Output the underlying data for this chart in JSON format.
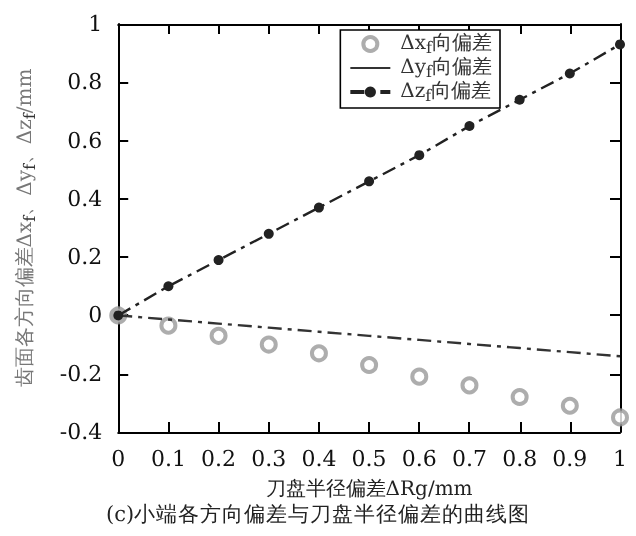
{
  "chart_data": {
    "type": "line",
    "xlabel": "刀盘半径偏差ΔRg/mm",
    "ylabel": "齿面各方向偏差Δx$_{f}$、Δy$_{f}$、Δz$_{f}$/mm",
    "annotations": [
      "(c)小端各方向偏差与刀盘半径偏差的曲线图"
    ],
    "x": [
      0,
      0.1,
      0.2,
      0.3,
      0.4,
      0.5,
      0.6,
      0.7,
      0.8,
      0.9,
      1
    ],
    "series": [
      {
        "name": "Δx$_{f}$向偏差",
        "type": "scatter",
        "marker": "circle",
        "color": "#999999",
        "values": [
          0,
          -0.035,
          -0.07,
          -0.1,
          -0.13,
          -0.17,
          -0.21,
          -0.24,
          -0.28,
          -0.31,
          -0.35
        ]
      },
      {
        "name": "Δy$_{f}$向偏差",
        "marker": "none",
        "line_style": "dashed",
        "color": "#333333",
        "values": [
          0,
          -0.014,
          -0.028,
          -0.042,
          -0.056,
          -0.07,
          -0.084,
          -0.098,
          -0.112,
          -0.126,
          -0.14
        ]
      },
      {
        "name": "Δz$_{f}$向偏差",
        "marker": "circle",
        "line_style": "dashed",
        "color": "#222222",
        "values": [
          0,
          0.1,
          0.19,
          0.28,
          0.37,
          0.46,
          0.55,
          0.65,
          0.74,
          0.83,
          0.93
        ]
      }
    ],
    "xlim": [
      0,
      1
    ],
    "xticks": [
      0,
      0.1,
      0.2,
      0.3,
      0.4,
      0.5,
      0.6,
      0.7,
      0.8,
      0.9,
      1
    ],
    "ylim": [
      -0.4,
      1
    ],
    "yticks": [
      -0.4,
      -0.2,
      0,
      0.2,
      0.4,
      0.6,
      0.8,
      1
    ],
    "grid": false,
    "legend": "top right"
  }
}
